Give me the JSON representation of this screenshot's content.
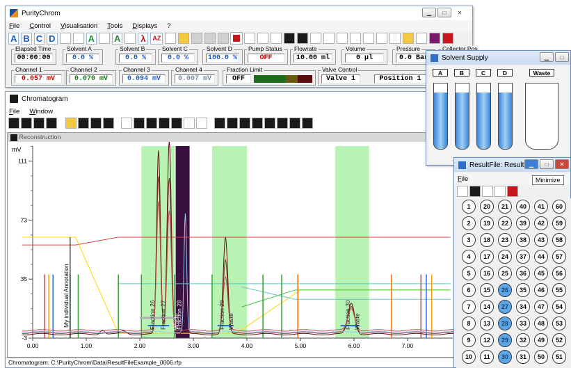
{
  "main_window": {
    "title": "PurityChrom",
    "menus": [
      "File",
      "Control",
      "Visualisation",
      "Tools",
      "Displays",
      "?"
    ],
    "solvent_buttons": [
      "A",
      "B",
      "C",
      "D",
      "A",
      "A"
    ],
    "readouts": [
      {
        "label": "Elapsed Time",
        "value": "00:00:00"
      },
      {
        "label": "Solvent A",
        "value": "0.0 %"
      },
      {
        "label": "Solvent B",
        "value": "0.0 %"
      },
      {
        "label": "Solvent C",
        "value": "0.0 %"
      },
      {
        "label": "Solvent D",
        "value": "100.0 %"
      },
      {
        "label": "Pump Status",
        "value": "OFF"
      },
      {
        "label": "Flowrate",
        "value": "10.00 ml"
      },
      {
        "label": "Volume",
        "value": "0 µl"
      },
      {
        "label": "Pressure",
        "value": "0.0 Bar"
      },
      {
        "label": "Collector Pos",
        "value": ""
      }
    ],
    "channels": [
      {
        "label": "Channel 1",
        "value": "0.057 mV"
      },
      {
        "label": "Channel 2",
        "value": "0.070 mV"
      },
      {
        "label": "Channel 3",
        "value": "0.094 mV"
      },
      {
        "label": "Channel 4",
        "value": "0.007 mV"
      }
    ],
    "fraction_limit": {
      "label": "Fraction Limit",
      "value": "OFF"
    },
    "valve_control": {
      "label": "Valve Control",
      "valve": "Valve 1",
      "position": "Position 1"
    }
  },
  "chromatogram": {
    "title": "Chromatogram",
    "menus": [
      "File",
      "Window"
    ],
    "reconstruction_title": "Reconstruction",
    "status": "Chromatogram:  C:\\PurityChrom\\Data\\ResultFileExample_0006.rfp",
    "chart_data": {
      "type": "line",
      "ylabel": "mV",
      "x_ticks": [
        "0.00",
        "1.00",
        "2.00",
        "3.00",
        "4.00",
        "5.00",
        "6.00",
        "7.00"
      ],
      "y_ticks": [
        "111",
        "73",
        "35",
        "-3"
      ],
      "annotation": "My individual Annotation",
      "fractions": [
        "Fraction 26",
        "Fraction 27",
        "Fraction 28",
        "Fraction 29",
        "Fraction 30"
      ],
      "waste_labels": [
        "Waste",
        "Waste",
        "Waste"
      ],
      "peaks": [
        {
          "x": 2.35,
          "y": 118
        },
        {
          "x": 2.55,
          "y": 125
        },
        {
          "x": 2.85,
          "y": 76
        },
        {
          "x": 3.6,
          "y": 62
        },
        {
          "x": 5.95,
          "y": 20
        }
      ]
    }
  },
  "solvent_supply": {
    "title": "Solvent Supply",
    "tanks": [
      "A",
      "B",
      "C",
      "D",
      "Waste"
    ],
    "levels": [
      0.8,
      0.8,
      0.8,
      0.8,
      0
    ]
  },
  "result_file": {
    "title": "ResultFile: ResultFile...",
    "menu": "File",
    "tooltip": "Minimize",
    "vials": [
      [
        "1",
        "20",
        "21",
        "40",
        "41",
        "60"
      ],
      [
        "2",
        "19",
        "22",
        "39",
        "42",
        "59"
      ],
      [
        "3",
        "18",
        "23",
        "38",
        "43",
        "58"
      ],
      [
        "4",
        "17",
        "24",
        "37",
        "44",
        "57"
      ],
      [
        "5",
        "16",
        "25",
        "36",
        "45",
        "56"
      ],
      [
        "6",
        "15",
        "26",
        "35",
        "46",
        "55"
      ],
      [
        "7",
        "14",
        "27",
        "34",
        "47",
        "54"
      ],
      [
        "8",
        "13",
        "28",
        "33",
        "48",
        "53"
      ],
      [
        "9",
        "12",
        "29",
        "32",
        "49",
        "52"
      ],
      [
        "10",
        "11",
        "30",
        "31",
        "50",
        "51"
      ]
    ],
    "highlighted": [
      "26",
      "27",
      "28",
      "29",
      "30"
    ]
  }
}
